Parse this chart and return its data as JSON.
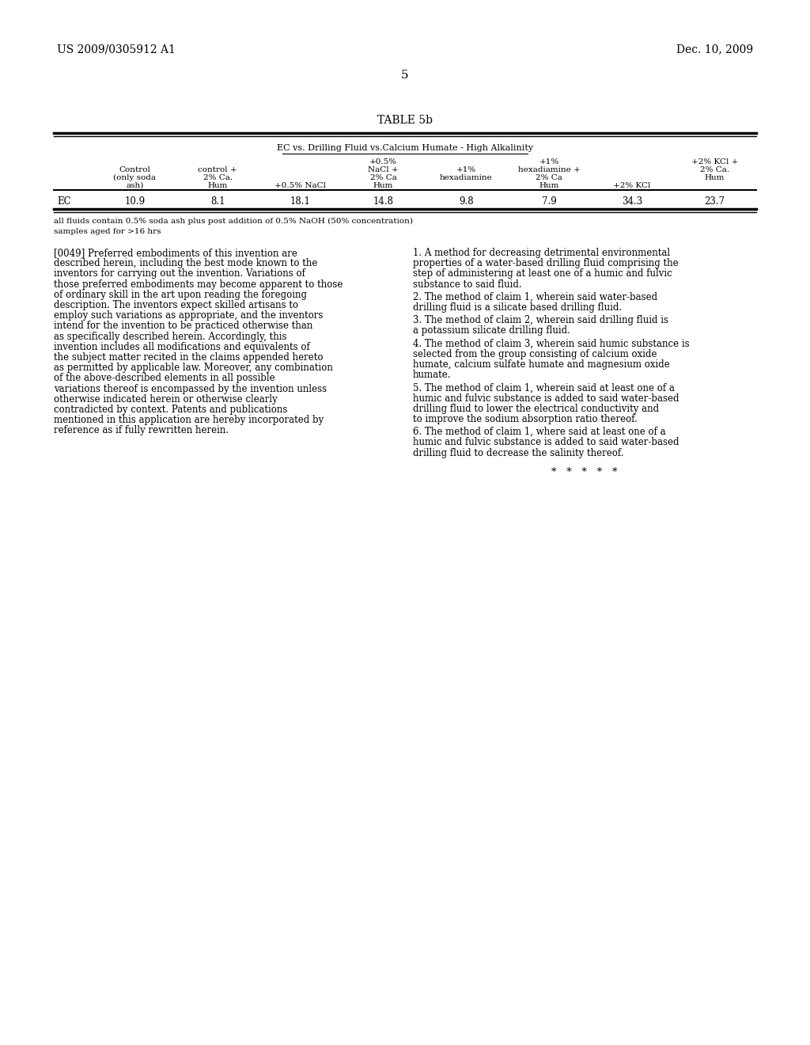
{
  "page_number": "5",
  "header_left": "US 2009/0305912 A1",
  "header_right": "Dec. 10, 2009",
  "table_title": "TABLE 5b",
  "table_subtitle": "EC vs. Drilling Fluid vs.Calcium Humate - High Alkalinity",
  "col_headers": [
    [
      "Control",
      "(only soda",
      "ash)"
    ],
    [
      "control +",
      "2% Ca.",
      "Hum"
    ],
    [
      "+0.5% NaCl",
      "",
      ""
    ],
    [
      "+0.5%",
      "NaCl +",
      "2% Ca",
      "Hum"
    ],
    [
      "+1%",
      "hexadiamine",
      "",
      ""
    ],
    [
      "+1%",
      "hexadiamine +",
      "2% Ca",
      "Hum"
    ],
    [
      "+2% KCl",
      "",
      ""
    ],
    [
      "+2% KCl +",
      "2% Ca.",
      "Hum"
    ]
  ],
  "row_label": "EC",
  "row_values": [
    "10.9",
    "8.1",
    "18.1",
    "14.8",
    "9.8",
    "7.9",
    "34.3",
    "23.7"
  ],
  "footnote_line1": "all fluids contain 0.5% soda ash plus post addition of 0.5% NaOH (50% concentration)",
  "footnote_line2": "samples aged for >16 hrs",
  "paragraph_left": "[0049]  Preferred embodiments of this invention are described herein, including the best mode known to the inventors for carrying out the invention. Variations of those preferred embodiments may become apparent to those of ordinary skill in the art upon reading the foregoing description. The inventors expect skilled artisans to employ such variations as appropriate, and the inventors intend for the invention to be practiced otherwise than as specifically described herein. Accordingly, this invention includes all modifications and equivalents of the subject matter recited in the claims appended hereto as permitted by applicable law. Moreover, any combination of the above-described elements in all possible variations thereof is encompassed by the invention unless otherwise indicated herein or otherwise clearly contradicted by context. Patents and publications mentioned in this application are hereby incorporated by reference as if fully rewritten herein.",
  "claim_1": "1.  A method for decreasing detrimental environmental properties of a water-based drilling fluid comprising the step of administering at least one of a humic and fulvic substance to said fluid.",
  "claim_2": "2.  The method of claim 1, wherein said water-based drilling fluid is a silicate based drilling fluid.",
  "claim_3": "3.  The method of claim 2, wherein said drilling fluid is a potassium silicate drilling fluid.",
  "claim_4": "4.  The method of claim 3, wherein said humic substance is selected from the group consisting of calcium oxide humate, calcium sulfate humate and magnesium oxide humate.",
  "claim_5": "5.  The method of claim 1, wherein said at least one of a humic and fulvic substance is added to said water-based drilling fluid to lower the electrical conductivity and to improve the sodium absorption ratio thereof.",
  "claim_6": "6.  The method of claim 1, where said at least one of a humic and fulvic substance is added to said water-based drilling fluid to decrease the salinity thereof.",
  "stars": "*   *   *   *   *",
  "background_color": "#ffffff",
  "text_color": "#000000"
}
